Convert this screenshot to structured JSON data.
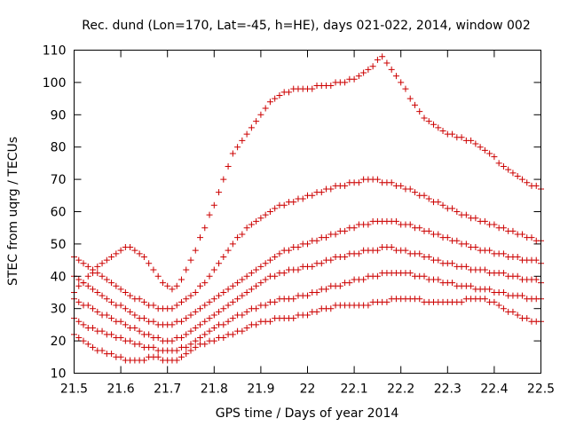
{
  "chart_data": {
    "type": "scatter",
    "title": "Rec. dund (Lon=170, Lat=-45, h=HE), days 021-022, 2014, window 002",
    "xlabel": "GPS time / Days of year 2014",
    "ylabel": "STEC from uqrg / TECUs",
    "xlim": [
      21.5,
      22.5
    ],
    "ylim": [
      10,
      110
    ],
    "xticks": [
      "21.5",
      "21.6",
      "21.7",
      "21.8",
      "21.9",
      "22",
      "22.1",
      "22.2",
      "22.3",
      "22.4",
      "22.5"
    ],
    "yticks": [
      "10",
      "20",
      "30",
      "40",
      "50",
      "60",
      "70",
      "80",
      "90",
      "100",
      "110"
    ],
    "grid": false,
    "color": "#cc0000",
    "series": [
      {
        "x": [
          21.5,
          21.51,
          21.52,
          21.53,
          21.54,
          21.55,
          21.56,
          21.57,
          21.58,
          21.59,
          21.6,
          21.61,
          21.62,
          21.63,
          21.64,
          21.65,
          21.66,
          21.67,
          21.68,
          21.69,
          21.7,
          21.71,
          21.72,
          21.73,
          21.74,
          21.75,
          21.76,
          21.77,
          21.78,
          21.79,
          21.8,
          21.81,
          21.82,
          21.83,
          21.84,
          21.85,
          21.86,
          21.87,
          21.88,
          21.89,
          21.9,
          21.91,
          21.92,
          21.93,
          21.94,
          21.95,
          21.96,
          21.97,
          21.98,
          21.99,
          22.0,
          22.01,
          22.02,
          22.03,
          22.04,
          22.05,
          22.06,
          22.07,
          22.08,
          22.09,
          22.1,
          22.11,
          22.12,
          22.13,
          22.14,
          22.15,
          22.16,
          22.17,
          22.18,
          22.19,
          22.2,
          22.21,
          22.22,
          22.23,
          22.24,
          22.25,
          22.26,
          22.27,
          22.28,
          22.29,
          22.3,
          22.31,
          22.32,
          22.33,
          22.34,
          22.35,
          22.36,
          22.37,
          22.38,
          22.39,
          22.4,
          22.41,
          22.42,
          22.43,
          22.44,
          22.45,
          22.46,
          22.47,
          22.48,
          22.49,
          22.5
        ],
        "y": [
          22,
          21,
          20,
          19,
          18,
          17,
          17,
          16,
          16,
          15,
          15,
          14,
          14,
          14,
          14,
          14,
          15,
          15,
          15,
          14,
          14,
          14,
          14,
          15,
          16,
          17,
          18,
          19,
          19,
          20,
          20,
          21,
          21,
          22,
          22,
          23,
          23,
          24,
          25,
          25,
          26,
          26,
          26,
          27,
          27,
          27,
          27,
          27,
          28,
          28,
          28,
          29,
          29,
          30,
          30,
          30,
          31,
          31,
          31,
          31,
          31,
          31,
          31,
          31,
          32,
          32,
          32,
          32,
          33,
          33,
          33,
          33,
          33,
          33,
          33,
          32,
          32,
          32,
          32,
          32,
          32,
          32,
          32,
          32,
          33,
          33,
          33,
          33,
          33,
          32,
          32,
          31,
          30,
          29,
          29,
          28,
          27,
          27,
          26,
          26,
          26
        ]
      },
      {
        "x": [
          21.5,
          21.51,
          21.52,
          21.53,
          21.54,
          21.55,
          21.56,
          21.57,
          21.58,
          21.59,
          21.6,
          21.61,
          21.62,
          21.63,
          21.64,
          21.65,
          21.66,
          21.67,
          21.68,
          21.69,
          21.7,
          21.71,
          21.72,
          21.73,
          21.74,
          21.75,
          21.76,
          21.77,
          21.78,
          21.79,
          21.8,
          21.81,
          21.82,
          21.83,
          21.84,
          21.85,
          21.86,
          21.87,
          21.88,
          21.89,
          21.9,
          21.91,
          21.92,
          21.93,
          21.94,
          21.95,
          21.96,
          21.97,
          21.98,
          21.99,
          22.0,
          22.01,
          22.02,
          22.03,
          22.04,
          22.05,
          22.06,
          22.07,
          22.08,
          22.09,
          22.1,
          22.11,
          22.12,
          22.13,
          22.14,
          22.15,
          22.16,
          22.17,
          22.18,
          22.19,
          22.2,
          22.21,
          22.22,
          22.23,
          22.24,
          22.25,
          22.26,
          22.27,
          22.28,
          22.29,
          22.3,
          22.31,
          22.32,
          22.33,
          22.34,
          22.35,
          22.36,
          22.37,
          22.38,
          22.39,
          22.4,
          22.41,
          22.42,
          22.43,
          22.44,
          22.45,
          22.46,
          22.47,
          22.48,
          22.49,
          22.5
        ],
        "y": [
          27,
          26,
          25,
          24,
          24,
          23,
          23,
          22,
          22,
          21,
          21,
          20,
          20,
          19,
          19,
          18,
          18,
          18,
          17,
          17,
          17,
          17,
          17,
          18,
          18,
          19,
          20,
          21,
          22,
          23,
          24,
          25,
          25,
          26,
          27,
          28,
          28,
          29,
          30,
          30,
          31,
          31,
          32,
          32,
          33,
          33,
          33,
          33,
          34,
          34,
          34,
          35,
          35,
          36,
          36,
          37,
          37,
          37,
          38,
          38,
          39,
          39,
          39,
          40,
          40,
          40,
          41,
          41,
          41,
          41,
          41,
          41,
          41,
          40,
          40,
          40,
          39,
          39,
          39,
          38,
          38,
          38,
          37,
          37,
          37,
          37,
          36,
          36,
          36,
          36,
          35,
          35,
          35,
          34,
          34,
          34,
          34,
          33,
          33,
          33,
          33
        ]
      },
      {
        "x": [
          21.5,
          21.51,
          21.52,
          21.53,
          21.54,
          21.55,
          21.56,
          21.57,
          21.58,
          21.59,
          21.6,
          21.61,
          21.62,
          21.63,
          21.64,
          21.65,
          21.66,
          21.67,
          21.68,
          21.69,
          21.7,
          21.71,
          21.72,
          21.73,
          21.74,
          21.75,
          21.76,
          21.77,
          21.78,
          21.79,
          21.8,
          21.81,
          21.82,
          21.83,
          21.84,
          21.85,
          21.86,
          21.87,
          21.88,
          21.89,
          21.9,
          21.91,
          21.92,
          21.93,
          21.94,
          21.95,
          21.96,
          21.97,
          21.98,
          21.99,
          22.0,
          22.01,
          22.02,
          22.03,
          22.04,
          22.05,
          22.06,
          22.07,
          22.08,
          22.09,
          22.1,
          22.11,
          22.12,
          22.13,
          22.14,
          22.15,
          22.16,
          22.17,
          22.18,
          22.19,
          22.2,
          22.21,
          22.22,
          22.23,
          22.24,
          22.25,
          22.26,
          22.27,
          22.28,
          22.29,
          22.3,
          22.31,
          22.32,
          22.33,
          22.34,
          22.35,
          22.36,
          22.37,
          22.38,
          22.39,
          22.4,
          22.41,
          22.42,
          22.43,
          22.44,
          22.45,
          22.46,
          22.47,
          22.48,
          22.49,
          22.5
        ],
        "y": [
          33,
          32,
          31,
          31,
          30,
          29,
          28,
          28,
          27,
          26,
          26,
          25,
          24,
          24,
          23,
          22,
          22,
          21,
          21,
          20,
          20,
          20,
          21,
          21,
          22,
          23,
          24,
          25,
          26,
          27,
          28,
          29,
          30,
          31,
          32,
          33,
          34,
          35,
          36,
          37,
          38,
          39,
          40,
          40,
          41,
          41,
          42,
          42,
          42,
          43,
          43,
          43,
          44,
          44,
          45,
          45,
          46,
          46,
          46,
          47,
          47,
          47,
          48,
          48,
          48,
          48,
          49,
          49,
          49,
          48,
          48,
          48,
          47,
          47,
          47,
          46,
          46,
          45,
          45,
          44,
          44,
          44,
          43,
          43,
          43,
          42,
          42,
          42,
          42,
          41,
          41,
          41,
          41,
          40,
          40,
          40,
          39,
          39,
          39,
          39,
          38
        ]
      },
      {
        "x": [
          21.5,
          21.51,
          21.52,
          21.53,
          21.54,
          21.55,
          21.56,
          21.57,
          21.58,
          21.59,
          21.6,
          21.61,
          21.62,
          21.63,
          21.64,
          21.65,
          21.66,
          21.67,
          21.68,
          21.69,
          21.7,
          21.71,
          21.72,
          21.73,
          21.74,
          21.75,
          21.76,
          21.77,
          21.78,
          21.79,
          21.8,
          21.81,
          21.82,
          21.83,
          21.84,
          21.85,
          21.86,
          21.87,
          21.88,
          21.89,
          21.9,
          21.91,
          21.92,
          21.93,
          21.94,
          21.95,
          21.96,
          21.97,
          21.98,
          21.99,
          22.0,
          22.01,
          22.02,
          22.03,
          22.04,
          22.05,
          22.06,
          22.07,
          22.08,
          22.09,
          22.1,
          22.11,
          22.12,
          22.13,
          22.14,
          22.15,
          22.16,
          22.17,
          22.18,
          22.19,
          22.2,
          22.21,
          22.22,
          22.23,
          22.24,
          22.25,
          22.26,
          22.27,
          22.28,
          22.29,
          22.3,
          22.31,
          22.32,
          22.33,
          22.34,
          22.35,
          22.36,
          22.37,
          22.38,
          22.39,
          22.4,
          22.41,
          22.42,
          22.43,
          22.44,
          22.45,
          22.46,
          22.47,
          22.48,
          22.49,
          22.5
        ],
        "y": [
          40,
          39,
          38,
          37,
          36,
          35,
          34,
          33,
          32,
          31,
          31,
          30,
          29,
          28,
          27,
          27,
          26,
          26,
          25,
          25,
          25,
          25,
          26,
          26,
          27,
          28,
          29,
          30,
          31,
          32,
          33,
          34,
          35,
          36,
          37,
          38,
          39,
          40,
          41,
          42,
          43,
          44,
          45,
          46,
          47,
          48,
          48,
          49,
          49,
          50,
          50,
          51,
          51,
          52,
          52,
          53,
          53,
          54,
          54,
          55,
          55,
          56,
          56,
          56,
          57,
          57,
          57,
          57,
          57,
          57,
          56,
          56,
          56,
          55,
          55,
          54,
          54,
          53,
          53,
          52,
          52,
          51,
          51,
          50,
          50,
          49,
          49,
          48,
          48,
          48,
          47,
          47,
          47,
          46,
          46,
          46,
          45,
          45,
          45,
          45,
          44
        ]
      },
      {
        "x": [
          21.5,
          21.51,
          21.52,
          21.53,
          21.54,
          21.55,
          21.56,
          21.57,
          21.58,
          21.59,
          21.6,
          21.61,
          21.62,
          21.63,
          21.64,
          21.65,
          21.66,
          21.67,
          21.68,
          21.69,
          21.7,
          21.71,
          21.72,
          21.73,
          21.74,
          21.75,
          21.76,
          21.77,
          21.78,
          21.79,
          21.8,
          21.81,
          21.82,
          21.83,
          21.84,
          21.85,
          21.86,
          21.87,
          21.88,
          21.89,
          21.9,
          21.91,
          21.92,
          21.93,
          21.94,
          21.95,
          21.96,
          21.97,
          21.98,
          21.99,
          22.0,
          22.01,
          22.02,
          22.03,
          22.04,
          22.05,
          22.06,
          22.07,
          22.08,
          22.09,
          22.1,
          22.11,
          22.12,
          22.13,
          22.14,
          22.15,
          22.16,
          22.17,
          22.18,
          22.19,
          22.2,
          22.21,
          22.22,
          22.23,
          22.24,
          22.25,
          22.26,
          22.27,
          22.28,
          22.29,
          22.3,
          22.31,
          22.32,
          22.33,
          22.34,
          22.35,
          22.36,
          22.37,
          22.38,
          22.39,
          22.4,
          22.41,
          22.42,
          22.43,
          22.44,
          22.45,
          22.46,
          22.47,
          22.48,
          22.49,
          22.5
        ],
        "y": [
          46,
          45,
          44,
          43,
          42,
          41,
          40,
          39,
          38,
          37,
          36,
          35,
          34,
          33,
          33,
          32,
          31,
          31,
          30,
          30,
          30,
          30,
          31,
          32,
          33,
          34,
          35,
          37,
          38,
          40,
          42,
          44,
          46,
          48,
          50,
          52,
          53,
          55,
          56,
          57,
          58,
          59,
          60,
          61,
          62,
          62,
          63,
          63,
          64,
          64,
          65,
          65,
          66,
          66,
          67,
          67,
          68,
          68,
          68,
          69,
          69,
          69,
          70,
          70,
          70,
          70,
          69,
          69,
          69,
          68,
          68,
          67,
          67,
          66,
          65,
          65,
          64,
          63,
          63,
          62,
          61,
          61,
          60,
          59,
          59,
          58,
          58,
          57,
          57,
          56,
          56,
          55,
          55,
          54,
          54,
          53,
          53,
          52,
          52,
          51,
          51
        ]
      },
      {
        "x": [
          21.5,
          21.51,
          21.52,
          21.53,
          21.54,
          21.55,
          21.56,
          21.57,
          21.58,
          21.59,
          21.6,
          21.61,
          21.62,
          21.63,
          21.64,
          21.65,
          21.66,
          21.67,
          21.68,
          21.69,
          21.7,
          21.71,
          21.72,
          21.73,
          21.74,
          21.75,
          21.76,
          21.77,
          21.78,
          21.79,
          21.8,
          21.81,
          21.82,
          21.83,
          21.84,
          21.85,
          21.86,
          21.87,
          21.88,
          21.89,
          21.9,
          21.91,
          21.92,
          21.93,
          21.94,
          21.95,
          21.96,
          21.97,
          21.98,
          21.99,
          22.0,
          22.01,
          22.02,
          22.03,
          22.04,
          22.05,
          22.06,
          22.07,
          22.08,
          22.09,
          22.1,
          22.11,
          22.12,
          22.13,
          22.14,
          22.15,
          22.16,
          22.17,
          22.18,
          22.19,
          22.2,
          22.21,
          22.22,
          22.23,
          22.24,
          22.25,
          22.26,
          22.27,
          22.28,
          22.29,
          22.3,
          22.31,
          22.32,
          22.33,
          22.34,
          22.35,
          22.36,
          22.37,
          22.38,
          22.39,
          22.4,
          22.41,
          22.42,
          22.43,
          22.44,
          22.45,
          22.46,
          22.47,
          22.48,
          22.49,
          22.5
        ],
        "y": [
          35,
          37,
          38,
          40,
          41,
          43,
          44,
          45,
          46,
          47,
          48,
          49,
          49,
          48,
          47,
          46,
          44,
          42,
          40,
          38,
          37,
          36,
          37,
          39,
          42,
          45,
          48,
          52,
          55,
          59,
          62,
          66,
          70,
          74,
          78,
          80,
          82,
          84,
          86,
          88,
          90,
          92,
          94,
          95,
          96,
          97,
          97,
          98,
          98,
          98,
          98,
          98,
          99,
          99,
          99,
          99,
          100,
          100,
          100,
          101,
          101,
          102,
          103,
          104,
          105,
          107,
          108,
          106,
          104,
          102,
          100,
          98,
          95,
          93,
          91,
          89,
          88,
          87,
          86,
          85,
          84,
          84,
          83,
          83,
          82,
          82,
          81,
          80,
          79,
          78,
          77,
          75,
          74,
          73,
          72,
          71,
          70,
          69,
          68,
          68,
          67
        ]
      }
    ]
  }
}
